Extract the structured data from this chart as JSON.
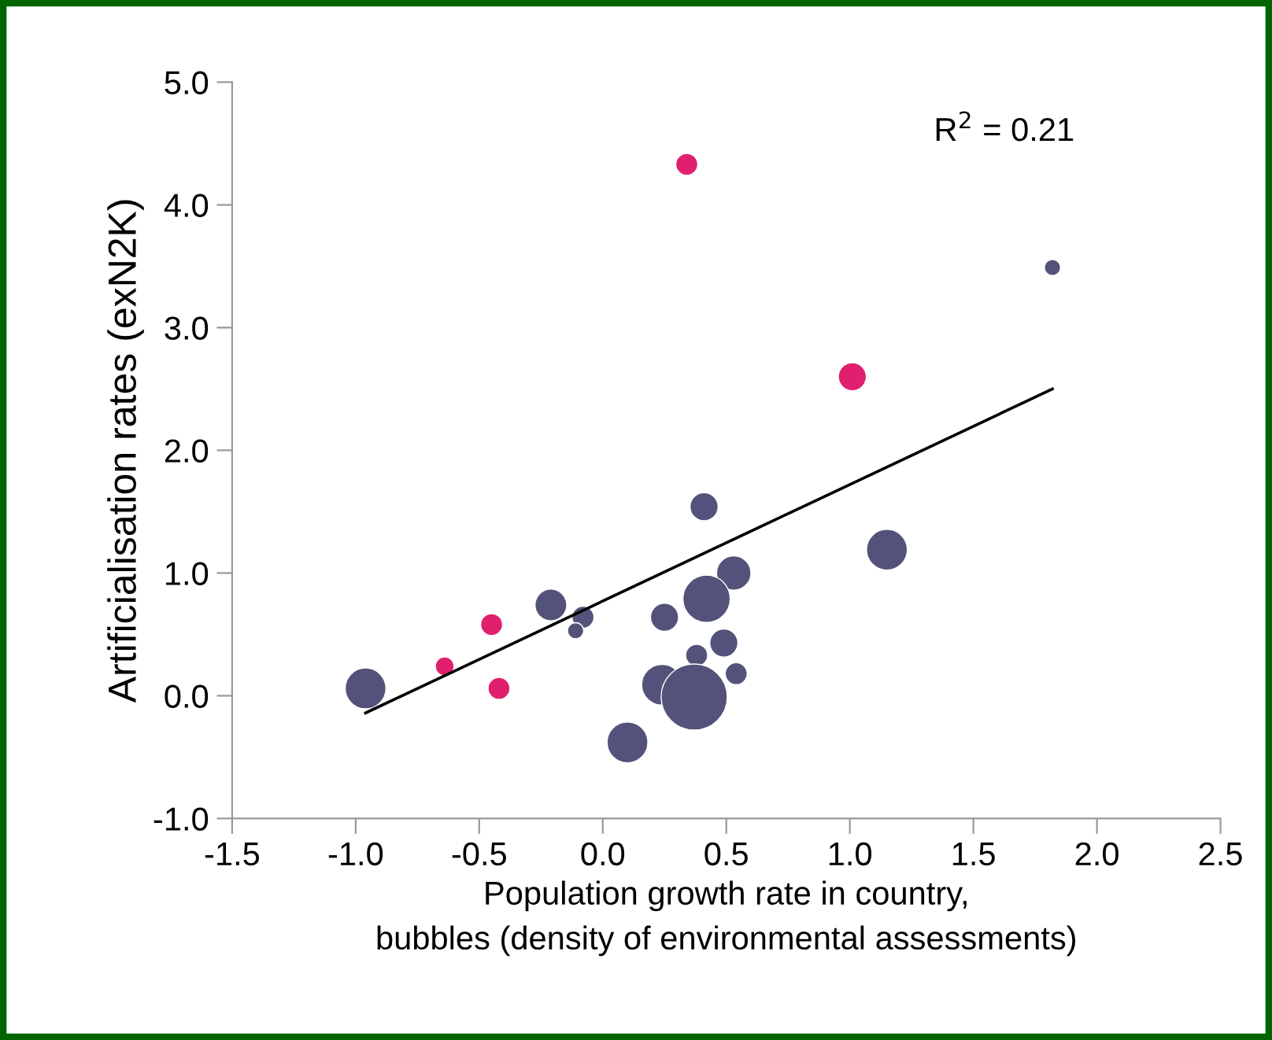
{
  "chart_data": {
    "type": "bubble",
    "xlabel": "Population growth rate in country,\nbubbles (density of environmental assessments)",
    "ylabel": "Artificialisation rates (exN2K)",
    "annotations": [
      "R$^{2}$ = 0.21"
    ],
    "xlim": [
      -1.5,
      2.5
    ],
    "xticks": [
      {
        "value": -1.5,
        "label": "-1.5"
      },
      {
        "value": -1.0,
        "label": "-1.0"
      },
      {
        "value": -0.5,
        "label": "-0.5"
      },
      {
        "value": 0,
        "label": "0.0"
      },
      {
        "value": 0.5,
        "label": "0.5"
      },
      {
        "value": 1,
        "label": "1.0"
      },
      {
        "value": 1.5,
        "label": "1.5"
      },
      {
        "value": 2,
        "label": "2.0"
      },
      {
        "value": 2.5,
        "label": "2.5"
      }
    ],
    "ylim": [
      -1.0,
      5.0
    ],
    "yticks": [
      {
        "value": -1,
        "label": "-1.0"
      },
      {
        "value": 0,
        "label": "0.0"
      },
      {
        "value": 1,
        "label": "1.0"
      },
      {
        "value": 2,
        "label": "2.0"
      },
      {
        "value": 3,
        "label": "3.0"
      },
      {
        "value": 4,
        "label": "4.0"
      },
      {
        "value": 5,
        "label": "5.0"
      }
    ],
    "grid": false,
    "series": [
      {
        "color": "#52527a",
        "x": [
          -0.96,
          -0.21,
          -0.08,
          -0.11,
          0.41,
          1.15,
          0.53,
          0.42,
          0.25,
          0.49,
          0.38,
          0.54,
          0.24,
          0.37,
          0.1,
          1.82
        ],
        "values": [
          0.06,
          0.74,
          0.64,
          0.53,
          1.54,
          1.19,
          1.0,
          0.79,
          0.64,
          0.43,
          0.33,
          0.18,
          0.09,
          -0.01,
          -0.38,
          3.49
        ],
        "sizes": [
          0.38,
          0.23,
          0.11,
          0.06,
          0.18,
          0.38,
          0.27,
          0.51,
          0.18,
          0.18,
          0.11,
          0.11,
          0.38,
          1,
          0.38,
          0.06
        ]
      },
      {
        "color": "#e0206e",
        "x": [
          -0.64,
          -0.45,
          -0.42,
          0.34,
          1.01
        ],
        "values": [
          0.24,
          0.58,
          0.06,
          4.33,
          2.6
        ],
        "sizes": [
          0.08,
          0.11,
          0.11,
          0.11,
          0.18
        ]
      },
      {
        "type": "line",
        "color": "#000000",
        "x": [
          -0.96,
          1.82
        ],
        "values": [
          -0.14,
          2.5
        ]
      }
    ]
  }
}
